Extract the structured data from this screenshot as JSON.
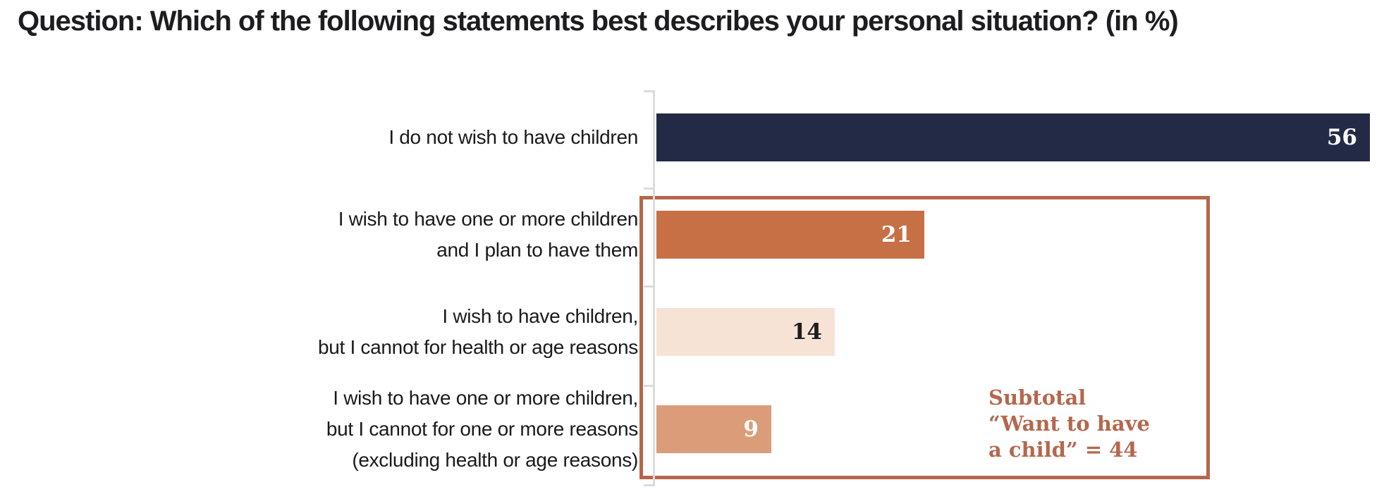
{
  "title": "Question: Which of the following statements best describes your personal situation? (in %)",
  "chart": {
    "rows": [
      {
        "label_lines": [
          "I do not wish to have children"
        ],
        "value": 56,
        "color": "#222a45",
        "value_color": "#ffffff"
      },
      {
        "label_lines": [
          "I wish to have one or more children",
          "and I plan to have them"
        ],
        "value": 21,
        "color": "#c77046",
        "value_color": "#ffffff"
      },
      {
        "label_lines": [
          "I wish to have children,",
          "but I cannot for health or age reasons"
        ],
        "value": 14,
        "color": "#f6e3d6",
        "value_color": "#1d1d1f"
      },
      {
        "label_lines": [
          "I wish to have one or more children,",
          "but I cannot for one or more reasons",
          "(excluding health or age reasons)"
        ],
        "value": 9,
        "color": "#db9d79",
        "value_color": "#ffffff"
      }
    ],
    "subtotal": {
      "lines": [
        "Subtotal",
        "“Want to have",
        "a child” = 44"
      ],
      "color": "#b4674d"
    }
  },
  "chart_data": {
    "type": "bar",
    "orientation": "horizontal",
    "title": "Question: Which of the following statements best describes your personal situation? (in %)",
    "categories": [
      "I do not wish to have children",
      "I wish to have one or more children and I plan to have them",
      "I wish to have children, but I cannot for health or age reasons",
      "I wish to have one or more children, but I cannot for one or more reasons (excluding health or age reasons)"
    ],
    "values": [
      56,
      21,
      14,
      9
    ],
    "bar_colors": [
      "#222a45",
      "#c77046",
      "#f6e3d6",
      "#db9d79"
    ],
    "xlabel": "",
    "ylabel": "",
    "xlim": [
      0,
      56
    ],
    "grid": false,
    "legend": false,
    "data_labels": "inside-end",
    "annotations": [
      {
        "text": "Subtotal “Want to have a child” = 44",
        "value": 44,
        "applies_to_categories": [
          1,
          2,
          3
        ],
        "style": "outlined-box",
        "color": "#b4674d"
      }
    ]
  }
}
